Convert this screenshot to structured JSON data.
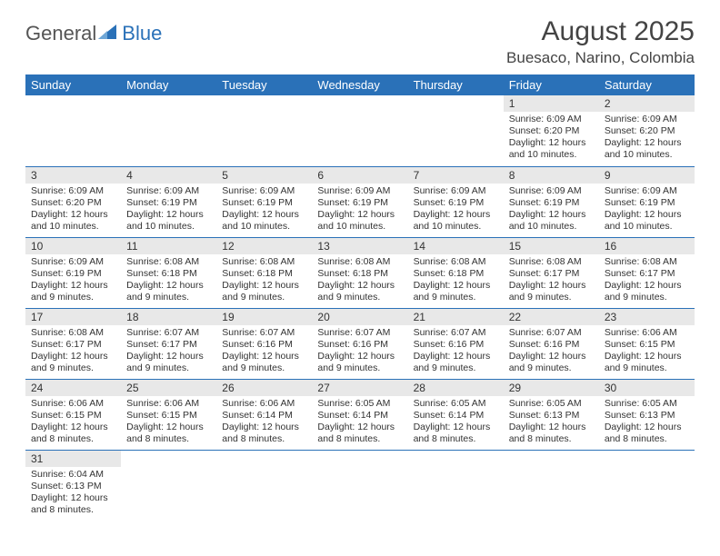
{
  "logo": {
    "part1": "General",
    "part2": "Blue"
  },
  "title": "August 2025",
  "location": "Buesaco, Narino, Colombia",
  "colors": {
    "header_bg": "#2a71b8",
    "header_text": "#ffffff",
    "daynum_bg": "#e8e8e8",
    "text": "#333333",
    "row_border": "#2a71b8"
  },
  "weekdays": [
    "Sunday",
    "Monday",
    "Tuesday",
    "Wednesday",
    "Thursday",
    "Friday",
    "Saturday"
  ],
  "weeks": [
    [
      {
        "n": "",
        "lines": []
      },
      {
        "n": "",
        "lines": []
      },
      {
        "n": "",
        "lines": []
      },
      {
        "n": "",
        "lines": []
      },
      {
        "n": "",
        "lines": []
      },
      {
        "n": "1",
        "lines": [
          "Sunrise: 6:09 AM",
          "Sunset: 6:20 PM",
          "Daylight: 12 hours",
          "and 10 minutes."
        ]
      },
      {
        "n": "2",
        "lines": [
          "Sunrise: 6:09 AM",
          "Sunset: 6:20 PM",
          "Daylight: 12 hours",
          "and 10 minutes."
        ]
      }
    ],
    [
      {
        "n": "3",
        "lines": [
          "Sunrise: 6:09 AM",
          "Sunset: 6:20 PM",
          "Daylight: 12 hours",
          "and 10 minutes."
        ]
      },
      {
        "n": "4",
        "lines": [
          "Sunrise: 6:09 AM",
          "Sunset: 6:19 PM",
          "Daylight: 12 hours",
          "and 10 minutes."
        ]
      },
      {
        "n": "5",
        "lines": [
          "Sunrise: 6:09 AM",
          "Sunset: 6:19 PM",
          "Daylight: 12 hours",
          "and 10 minutes."
        ]
      },
      {
        "n": "6",
        "lines": [
          "Sunrise: 6:09 AM",
          "Sunset: 6:19 PM",
          "Daylight: 12 hours",
          "and 10 minutes."
        ]
      },
      {
        "n": "7",
        "lines": [
          "Sunrise: 6:09 AM",
          "Sunset: 6:19 PM",
          "Daylight: 12 hours",
          "and 10 minutes."
        ]
      },
      {
        "n": "8",
        "lines": [
          "Sunrise: 6:09 AM",
          "Sunset: 6:19 PM",
          "Daylight: 12 hours",
          "and 10 minutes."
        ]
      },
      {
        "n": "9",
        "lines": [
          "Sunrise: 6:09 AM",
          "Sunset: 6:19 PM",
          "Daylight: 12 hours",
          "and 10 minutes."
        ]
      }
    ],
    [
      {
        "n": "10",
        "lines": [
          "Sunrise: 6:09 AM",
          "Sunset: 6:19 PM",
          "Daylight: 12 hours",
          "and 9 minutes."
        ]
      },
      {
        "n": "11",
        "lines": [
          "Sunrise: 6:08 AM",
          "Sunset: 6:18 PM",
          "Daylight: 12 hours",
          "and 9 minutes."
        ]
      },
      {
        "n": "12",
        "lines": [
          "Sunrise: 6:08 AM",
          "Sunset: 6:18 PM",
          "Daylight: 12 hours",
          "and 9 minutes."
        ]
      },
      {
        "n": "13",
        "lines": [
          "Sunrise: 6:08 AM",
          "Sunset: 6:18 PM",
          "Daylight: 12 hours",
          "and 9 minutes."
        ]
      },
      {
        "n": "14",
        "lines": [
          "Sunrise: 6:08 AM",
          "Sunset: 6:18 PM",
          "Daylight: 12 hours",
          "and 9 minutes."
        ]
      },
      {
        "n": "15",
        "lines": [
          "Sunrise: 6:08 AM",
          "Sunset: 6:17 PM",
          "Daylight: 12 hours",
          "and 9 minutes."
        ]
      },
      {
        "n": "16",
        "lines": [
          "Sunrise: 6:08 AM",
          "Sunset: 6:17 PM",
          "Daylight: 12 hours",
          "and 9 minutes."
        ]
      }
    ],
    [
      {
        "n": "17",
        "lines": [
          "Sunrise: 6:08 AM",
          "Sunset: 6:17 PM",
          "Daylight: 12 hours",
          "and 9 minutes."
        ]
      },
      {
        "n": "18",
        "lines": [
          "Sunrise: 6:07 AM",
          "Sunset: 6:17 PM",
          "Daylight: 12 hours",
          "and 9 minutes."
        ]
      },
      {
        "n": "19",
        "lines": [
          "Sunrise: 6:07 AM",
          "Sunset: 6:16 PM",
          "Daylight: 12 hours",
          "and 9 minutes."
        ]
      },
      {
        "n": "20",
        "lines": [
          "Sunrise: 6:07 AM",
          "Sunset: 6:16 PM",
          "Daylight: 12 hours",
          "and 9 minutes."
        ]
      },
      {
        "n": "21",
        "lines": [
          "Sunrise: 6:07 AM",
          "Sunset: 6:16 PM",
          "Daylight: 12 hours",
          "and 9 minutes."
        ]
      },
      {
        "n": "22",
        "lines": [
          "Sunrise: 6:07 AM",
          "Sunset: 6:16 PM",
          "Daylight: 12 hours",
          "and 9 minutes."
        ]
      },
      {
        "n": "23",
        "lines": [
          "Sunrise: 6:06 AM",
          "Sunset: 6:15 PM",
          "Daylight: 12 hours",
          "and 9 minutes."
        ]
      }
    ],
    [
      {
        "n": "24",
        "lines": [
          "Sunrise: 6:06 AM",
          "Sunset: 6:15 PM",
          "Daylight: 12 hours",
          "and 8 minutes."
        ]
      },
      {
        "n": "25",
        "lines": [
          "Sunrise: 6:06 AM",
          "Sunset: 6:15 PM",
          "Daylight: 12 hours",
          "and 8 minutes."
        ]
      },
      {
        "n": "26",
        "lines": [
          "Sunrise: 6:06 AM",
          "Sunset: 6:14 PM",
          "Daylight: 12 hours",
          "and 8 minutes."
        ]
      },
      {
        "n": "27",
        "lines": [
          "Sunrise: 6:05 AM",
          "Sunset: 6:14 PM",
          "Daylight: 12 hours",
          "and 8 minutes."
        ]
      },
      {
        "n": "28",
        "lines": [
          "Sunrise: 6:05 AM",
          "Sunset: 6:14 PM",
          "Daylight: 12 hours",
          "and 8 minutes."
        ]
      },
      {
        "n": "29",
        "lines": [
          "Sunrise: 6:05 AM",
          "Sunset: 6:13 PM",
          "Daylight: 12 hours",
          "and 8 minutes."
        ]
      },
      {
        "n": "30",
        "lines": [
          "Sunrise: 6:05 AM",
          "Sunset: 6:13 PM",
          "Daylight: 12 hours",
          "and 8 minutes."
        ]
      }
    ],
    [
      {
        "n": "31",
        "lines": [
          "Sunrise: 6:04 AM",
          "Sunset: 6:13 PM",
          "Daylight: 12 hours",
          "and 8 minutes."
        ]
      },
      {
        "n": "",
        "lines": []
      },
      {
        "n": "",
        "lines": []
      },
      {
        "n": "",
        "lines": []
      },
      {
        "n": "",
        "lines": []
      },
      {
        "n": "",
        "lines": []
      },
      {
        "n": "",
        "lines": []
      }
    ]
  ]
}
